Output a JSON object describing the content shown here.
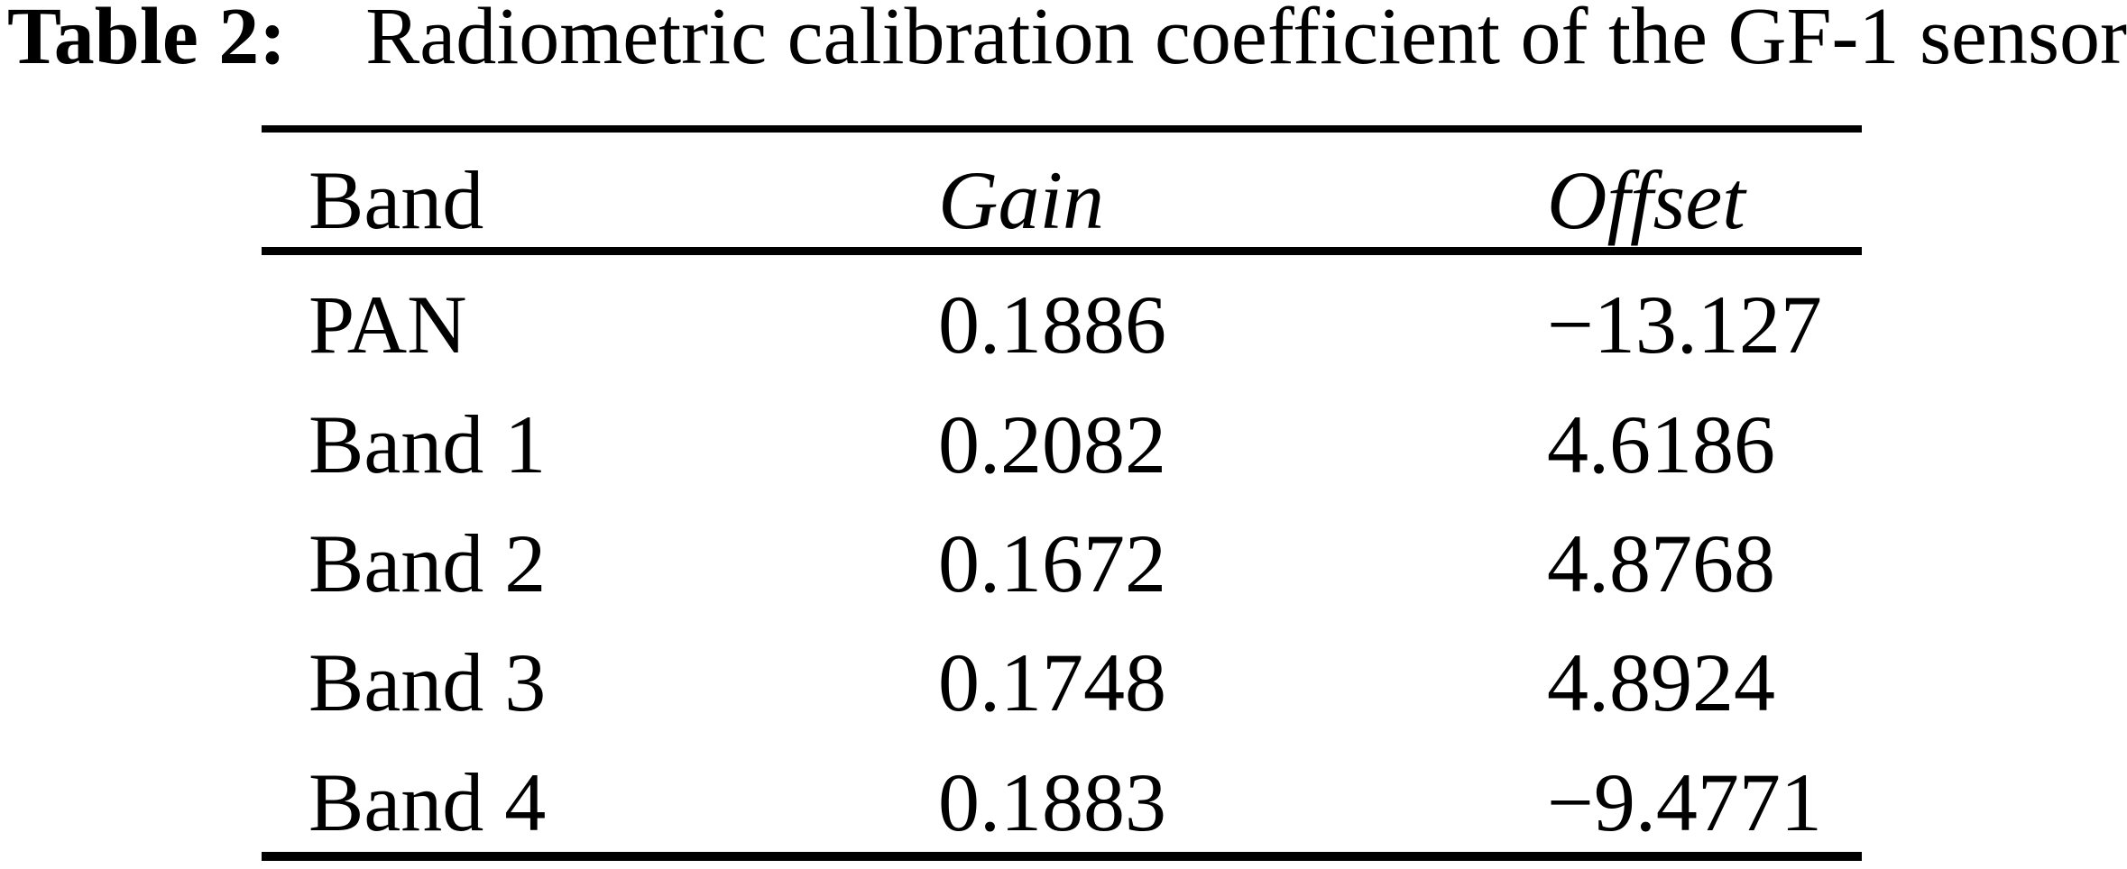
{
  "caption": {
    "label": "Table 2:",
    "text": "Radiometric calibration coefficient of the GF-1 sensor"
  },
  "table": {
    "columns": [
      "Band",
      "Gain",
      "Offset"
    ],
    "rows": [
      {
        "band": "PAN",
        "gain": "0.1886",
        "offset": "−13.127"
      },
      {
        "band": "Band 1",
        "gain": "0.2082",
        "offset": "4.6186"
      },
      {
        "band": "Band 2",
        "gain": "0.1672",
        "offset": "4.8768"
      },
      {
        "band": "Band 3",
        "gain": "0.1748",
        "offset": "4.8924"
      },
      {
        "band": "Band 4",
        "gain": "0.1883",
        "offset": "−9.4771"
      }
    ]
  },
  "colors": {
    "text": "#000000",
    "background": "#ffffff",
    "rule": "#000000"
  }
}
